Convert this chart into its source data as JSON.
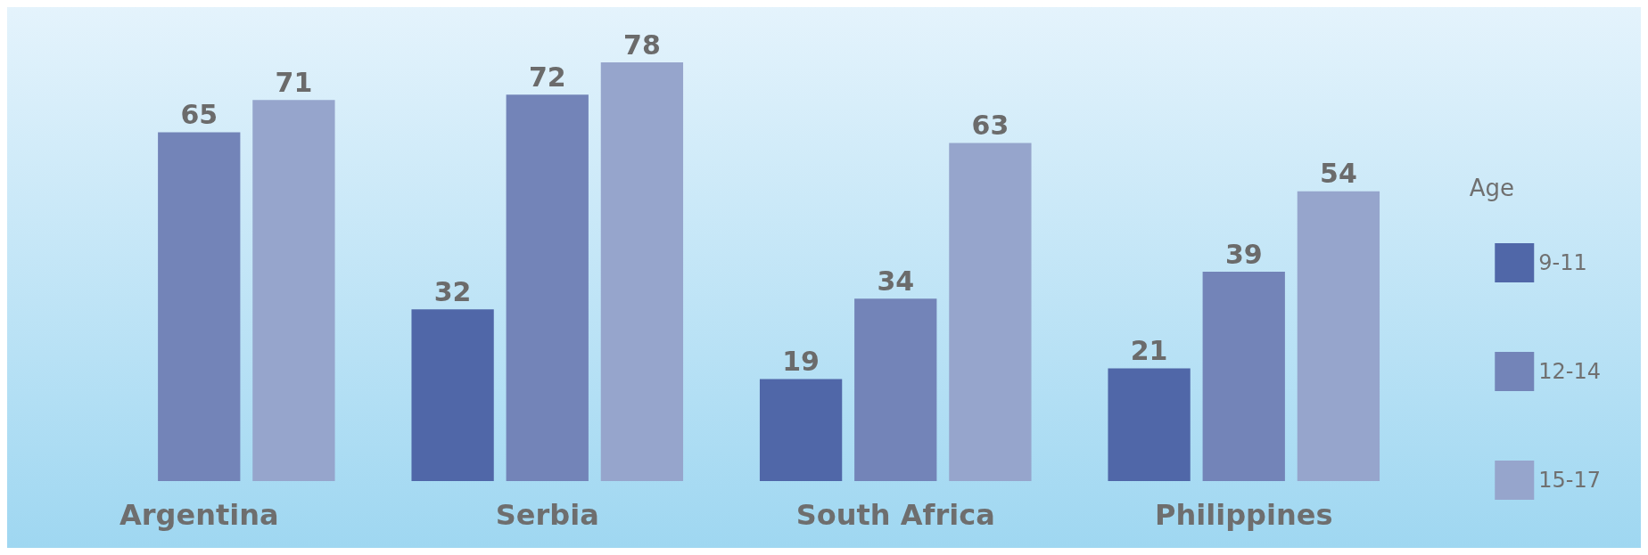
{
  "chart_data": {
    "type": "bar",
    "legend_title": "Age",
    "categories": [
      "Argentina",
      "Serbia",
      "South Africa",
      "Philippines"
    ],
    "series": [
      {
        "name": "9-11",
        "color": "#5067a8",
        "values": [
          null,
          32,
          19,
          21
        ]
      },
      {
        "name": "12-14",
        "color": "#7384b8",
        "values": [
          65,
          72,
          34,
          39
        ]
      },
      {
        "name": "15-17",
        "color": "#96a5cc",
        "values": [
          71,
          78,
          63,
          54
        ]
      }
    ],
    "data_labels": true,
    "legend": "right"
  }
}
